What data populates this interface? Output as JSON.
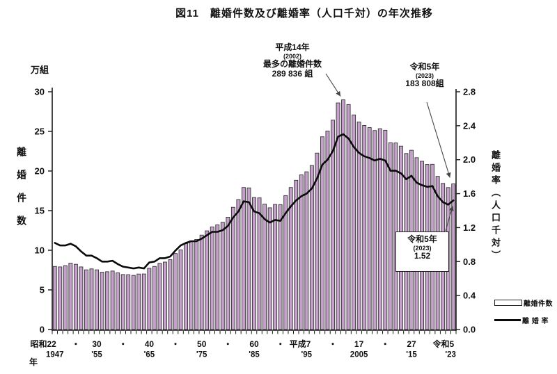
{
  "title": "図11　離婚件数及び離婚率（人口千対）の年次推移",
  "axes": {
    "left_unit": "万組",
    "left_label": "離婚件数",
    "right_label": "離婚率（人口千対）",
    "x_prefix": "年"
  },
  "legend": {
    "bar_label": "離婚件数",
    "line_label": "離 婚 率"
  },
  "annotations": {
    "peak": {
      "lines": [
        "平成14年",
        "(2002)",
        "最多の離婚件数",
        "289 836 組"
      ],
      "target_year": 2002
    },
    "latest_count": {
      "lines": [
        "令和5年",
        "(2023)",
        "183 808組"
      ],
      "target_year": 2023
    },
    "latest_rate": {
      "lines": [
        "令和5年",
        "(2023)",
        "1.52"
      ],
      "target_year": 2023
    }
  },
  "colors": {
    "bar_fill": "#c5a0cb",
    "bar_border": "#333333",
    "line": "#0a0a0a",
    "axis": "#1a1a1a",
    "arrow": "#444444"
  },
  "chart_data": {
    "type": "bar+line",
    "title": "図11　離婚件数及び離婚率（人口千対）の年次推移",
    "grid": false,
    "legend_position": "bottom-right",
    "left_axis": {
      "unit": "万組",
      "min": 0,
      "max": 30,
      "ticks": [
        0,
        5,
        10,
        15,
        20,
        25,
        30
      ]
    },
    "right_axis": {
      "unit": "人口千対",
      "min": 0,
      "max": 2.8,
      "ticks": [
        "0.0",
        "0.4",
        "0.8",
        "1.2",
        "1.6",
        "2.0",
        "2.4",
        "2.8"
      ]
    },
    "years": [
      1947,
      1948,
      1949,
      1950,
      1951,
      1952,
      1953,
      1954,
      1955,
      1956,
      1957,
      1958,
      1959,
      1960,
      1961,
      1962,
      1963,
      1964,
      1965,
      1966,
      1967,
      1968,
      1969,
      1970,
      1971,
      1972,
      1973,
      1974,
      1975,
      1976,
      1977,
      1978,
      1979,
      1980,
      1981,
      1982,
      1983,
      1984,
      1985,
      1986,
      1987,
      1988,
      1989,
      1990,
      1991,
      1992,
      1993,
      1994,
      1995,
      1996,
      1997,
      1998,
      1999,
      2000,
      2001,
      2002,
      2003,
      2004,
      2005,
      2006,
      2007,
      2008,
      2009,
      2010,
      2011,
      2012,
      2013,
      2014,
      2015,
      2016,
      2017,
      2018,
      2019,
      2020,
      2021,
      2022,
      2023
    ],
    "series": [
      {
        "name": "離婚件数",
        "type": "bar",
        "unit": "万組",
        "values": [
          7.96,
          7.9,
          8.06,
          8.37,
          8.23,
          7.9,
          7.53,
          7.65,
          7.53,
          7.23,
          7.29,
          7.38,
          7.15,
          6.94,
          6.92,
          6.83,
          7.0,
          7.01,
          7.72,
          7.96,
          8.35,
          8.51,
          8.81,
          9.59,
          10.05,
          10.84,
          11.19,
          11.36,
          11.91,
          12.45,
          12.95,
          13.21,
          13.53,
          14.17,
          15.42,
          16.4,
          17.92,
          17.87,
          16.66,
          16.61,
          15.82,
          15.36,
          15.78,
          15.76,
          16.9,
          17.92,
          18.83,
          19.51,
          19.9,
          20.7,
          22.26,
          24.32,
          25.05,
          26.42,
          28.59,
          28.98,
          28.39,
          27.08,
          26.19,
          25.75,
          25.48,
          25.11,
          25.34,
          25.14,
          23.57,
          23.54,
          23.14,
          22.21,
          22.62,
          21.68,
          21.23,
          20.83,
          20.85,
          19.33,
          18.44,
          17.91,
          18.38
        ]
      },
      {
        "name": "離婚率",
        "type": "line",
        "unit": "人口千対",
        "values": [
          1.02,
          0.99,
          0.99,
          1.01,
          0.98,
          0.92,
          0.87,
          0.87,
          0.84,
          0.8,
          0.8,
          0.81,
          0.77,
          0.74,
          0.73,
          0.72,
          0.73,
          0.72,
          0.79,
          0.8,
          0.84,
          0.84,
          0.86,
          0.93,
          0.99,
          1.02,
          1.04,
          1.04,
          1.07,
          1.11,
          1.15,
          1.15,
          1.17,
          1.22,
          1.32,
          1.39,
          1.51,
          1.5,
          1.39,
          1.37,
          1.3,
          1.26,
          1.29,
          1.28,
          1.37,
          1.45,
          1.52,
          1.57,
          1.6,
          1.66,
          1.78,
          1.94,
          2.0,
          2.1,
          2.27,
          2.3,
          2.25,
          2.15,
          2.08,
          2.04,
          2.02,
          1.99,
          2.01,
          1.99,
          1.87,
          1.87,
          1.84,
          1.77,
          1.81,
          1.73,
          1.7,
          1.68,
          1.69,
          1.57,
          1.5,
          1.47,
          1.52
        ]
      }
    ],
    "x_tick_rows": [
      {
        "year": 1947,
        "era": "昭和22",
        "west": "1947",
        "era_anchor": "end",
        "era_dx": 2,
        "west_dx": 0
      },
      {
        "year": 1951,
        "era": "・"
      },
      {
        "year": 1955,
        "era": "30",
        "west": "'55"
      },
      {
        "year": 1960,
        "era": "・"
      },
      {
        "year": 1965,
        "era": "40",
        "west": "'65"
      },
      {
        "year": 1970,
        "era": "・"
      },
      {
        "year": 1975,
        "era": "50",
        "west": "'75"
      },
      {
        "year": 1980,
        "era": "・"
      },
      {
        "year": 1985,
        "era": "60",
        "west": "'85"
      },
      {
        "year": 1990,
        "era": "・"
      },
      {
        "year": 1995,
        "era": "平成7",
        "west": "'95",
        "era_anchor": "end",
        "era_dx": 6
      },
      {
        "year": 2000,
        "era": "・"
      },
      {
        "year": 2005,
        "era": "17",
        "west": "2005"
      },
      {
        "year": 2010,
        "era": "・"
      },
      {
        "year": 2015,
        "era": "27",
        "west": "'15"
      },
      {
        "year": 2023,
        "era": "令和5",
        "west": "'23",
        "era_anchor": "end",
        "era_dx": 1,
        "west_dx": -4
      }
    ]
  }
}
